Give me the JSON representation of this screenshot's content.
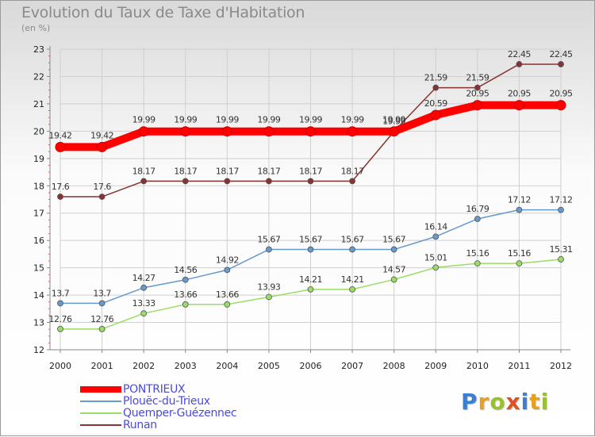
{
  "title": "Evolution du Taux de Taxe d'Habitation",
  "subtitle": "(en %)",
  "brand": {
    "letters": [
      "P",
      "r",
      "o",
      "x",
      "i",
      "t",
      "i"
    ],
    "colors": [
      "#3a7fd0",
      "#e8a020",
      "#9ac030",
      "#e05020",
      "#3a7fd0",
      "#e8a020",
      "#9ac030"
    ]
  },
  "colors": {
    "grid": "#cfcfcf",
    "axis": "#888888",
    "tick_text": "#222222",
    "label_text": "#333333"
  },
  "chart_data": {
    "type": "line",
    "title": "Evolution du Taux de Taxe d'Habitation",
    "subtitle": "(en %)",
    "xlabel": "",
    "ylabel": "",
    "x": [
      2000,
      2001,
      2002,
      2003,
      2004,
      2005,
      2006,
      2007,
      2008,
      2009,
      2010,
      2011,
      2012
    ],
    "ylim": [
      12,
      23
    ],
    "yticks": [
      12,
      13,
      14,
      15,
      16,
      17,
      18,
      19,
      20,
      21,
      22,
      23
    ],
    "grid": true,
    "legend_placement": "bottom-left",
    "series": [
      {
        "name": "PONTRIEUX",
        "color": "#ff0000",
        "values": [
          19.42,
          19.42,
          19.99,
          19.99,
          19.99,
          19.99,
          19.99,
          19.99,
          19.99,
          20.59,
          20.95,
          20.95,
          20.95
        ],
        "labels": [
          "19.42",
          "19.42",
          "19.99",
          "19.99",
          "19.99",
          "19.99",
          "19.99",
          "19.99",
          "19.99",
          "20.59",
          "20.95",
          "20.95",
          "20.95"
        ]
      },
      {
        "name": "Plouëc-du-Trieux",
        "color": "#6699cc",
        "values": [
          13.7,
          13.7,
          14.27,
          14.56,
          14.92,
          15.67,
          15.67,
          15.67,
          15.67,
          16.14,
          16.79,
          17.12,
          17.12
        ],
        "labels": [
          "13.7",
          "13.7",
          "14.27",
          "14.56",
          "14.92",
          "15.67",
          "15.67",
          "15.67",
          "15.67",
          "16.14",
          "16.79",
          "17.12",
          "17.12"
        ]
      },
      {
        "name": "Quemper-Guézennec",
        "color": "#99dd66",
        "values": [
          12.76,
          12.76,
          13.33,
          13.66,
          13.66,
          13.93,
          14.21,
          14.21,
          14.57,
          15.01,
          15.16,
          15.16,
          15.31
        ],
        "labels": [
          "12.76",
          "12.76",
          "13.33",
          "13.66",
          "13.66",
          "13.93",
          "14.21",
          "14.21",
          "14.57",
          "15.01",
          "15.16",
          "15.16",
          "15.31"
        ]
      },
      {
        "name": "Runan",
        "color": "#883333",
        "values": [
          17.6,
          17.6,
          18.17,
          18.17,
          18.17,
          18.17,
          18.17,
          18.17,
          19.99,
          21.59,
          21.59,
          22.45,
          22.45
        ],
        "labels": [
          "17.6",
          "17.6",
          "18.17",
          "18.17",
          "18.17",
          "18.17",
          "18.17",
          "18.17",
          "19.99",
          "21.59",
          "21.59",
          "22.45",
          "22.45"
        ]
      }
    ]
  }
}
